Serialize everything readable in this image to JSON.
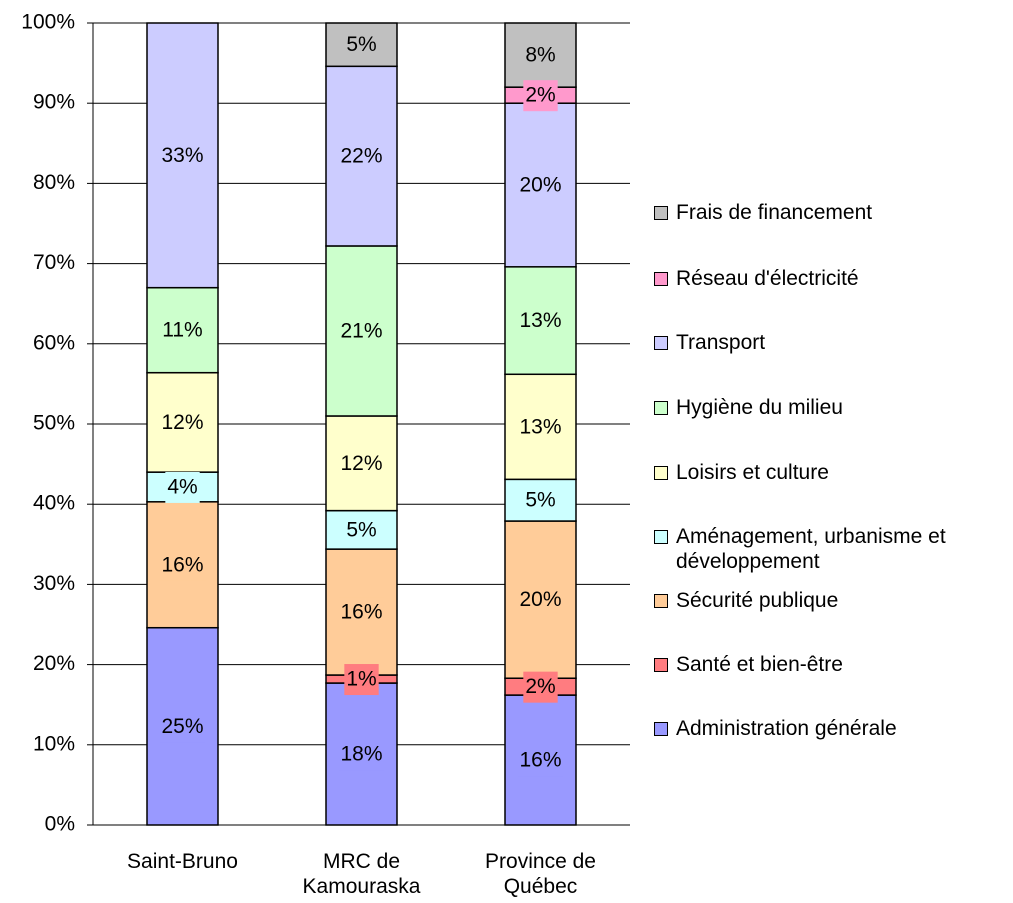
{
  "chart_data": {
    "type": "stacked-bar",
    "categories": [
      "Saint-Bruno",
      "MRC de Kamouraska",
      "Province de Québec"
    ],
    "ylim": [
      0,
      100
    ],
    "yticks": [
      {
        "value": 0,
        "label": "0%"
      },
      {
        "value": 10,
        "label": "10%"
      },
      {
        "value": 20,
        "label": "20%"
      },
      {
        "value": 30,
        "label": "30%"
      },
      {
        "value": 40,
        "label": "40%"
      },
      {
        "value": 50,
        "label": "50%"
      },
      {
        "value": 60,
        "label": "60%"
      },
      {
        "value": 70,
        "label": "70%"
      },
      {
        "value": 80,
        "label": "80%"
      },
      {
        "value": 90,
        "label": "90%"
      },
      {
        "value": 100,
        "label": "100%"
      }
    ],
    "grid": true,
    "legend": "right",
    "series": [
      {
        "name": "Administration générale",
        "color": "#9999ff",
        "values": [
          24.6,
          17.7,
          16.2
        ],
        "value_labels": [
          "25%",
          "18%",
          "16%"
        ]
      },
      {
        "name": "Santé et bien-être",
        "color": "#ff7c80",
        "values": [
          null,
          1.0,
          2.1
        ],
        "value_labels": [
          null,
          "1%",
          "2%"
        ]
      },
      {
        "name": "Sécurité publique",
        "color": "#ffcc99",
        "values": [
          15.7,
          15.7,
          19.6
        ],
        "value_labels": [
          "16%",
          "16%",
          "20%"
        ]
      },
      {
        "name": "Aménagement, urbanisme et développement",
        "color": "#ccffff",
        "values": [
          3.7,
          4.8,
          5.2
        ],
        "value_labels": [
          "4%",
          "5%",
          "5%"
        ]
      },
      {
        "name": "Loisirs et culture",
        "color": "#ffffcc",
        "values": [
          12.4,
          11.8,
          13.1
        ],
        "value_labels": [
          "12%",
          "12%",
          "13%"
        ]
      },
      {
        "name": "Hygiène du milieu",
        "color": "#ccffcc",
        "values": [
          10.6,
          21.2,
          13.4
        ],
        "value_labels": [
          "11%",
          "21%",
          "13%"
        ]
      },
      {
        "name": "Transport",
        "color": "#ccccff",
        "values": [
          33.0,
          22.4,
          20.4
        ],
        "value_labels": [
          "33%",
          "22%",
          "20%"
        ]
      },
      {
        "name": "Réseau d'électricité",
        "color": "#ff99cc",
        "values": [
          null,
          null,
          2.0
        ],
        "value_labels": [
          null,
          null,
          "2%"
        ]
      },
      {
        "name": "Frais de financement",
        "color": "#c0c0c0",
        "values": [
          null,
          5.4,
          8.0
        ],
        "value_labels": [
          null,
          "5%",
          "8%"
        ]
      }
    ]
  }
}
